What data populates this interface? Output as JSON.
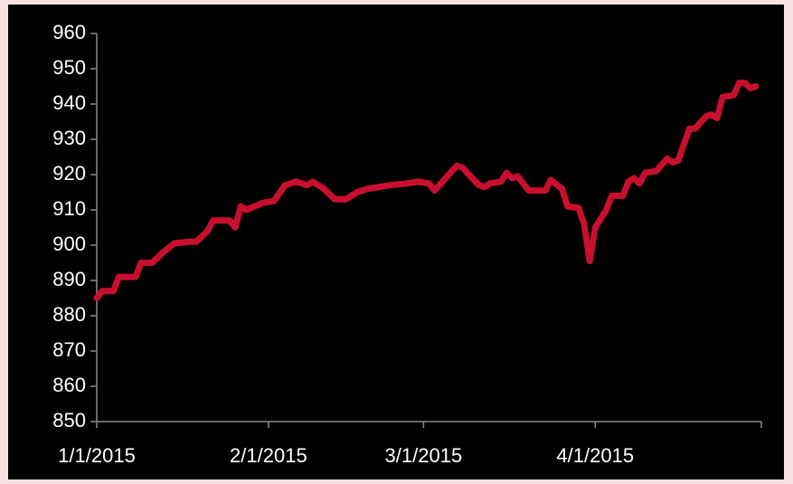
{
  "chart_data": {
    "type": "line",
    "x": [
      "2015-01-01",
      "2015-01-02",
      "2015-01-04",
      "2015-01-05",
      "2015-01-06",
      "2015-01-08",
      "2015-01-09",
      "2015-01-11",
      "2015-01-13",
      "2015-01-15",
      "2015-01-18",
      "2015-01-19",
      "2015-01-21",
      "2015-01-22",
      "2015-01-25",
      "2015-01-26",
      "2015-01-27",
      "2015-01-28",
      "2015-01-31",
      "2015-02-02",
      "2015-02-04",
      "2015-02-06",
      "2015-02-08",
      "2015-02-09",
      "2015-02-11",
      "2015-02-13",
      "2015-02-15",
      "2015-02-17",
      "2015-02-19",
      "2015-02-21",
      "2015-02-23",
      "2015-02-26",
      "2015-02-28",
      "2015-03-02",
      "2015-03-03",
      "2015-03-05",
      "2015-03-07",
      "2015-03-08",
      "2015-03-11",
      "2015-03-12",
      "2015-03-13",
      "2015-03-15",
      "2015-03-16",
      "2015-03-17",
      "2015-03-18",
      "2015-03-20",
      "2015-03-23",
      "2015-03-24",
      "2015-03-26",
      "2015-03-27",
      "2015-03-29",
      "2015-03-30",
      "2015-03-31",
      "2015-04-01",
      "2015-04-03",
      "2015-04-04",
      "2015-04-06",
      "2015-04-07",
      "2015-04-08",
      "2015-04-09",
      "2015-04-10",
      "2015-04-12",
      "2015-04-14",
      "2015-04-15",
      "2015-04-16",
      "2015-04-18",
      "2015-04-19",
      "2015-04-21",
      "2015-04-22",
      "2015-04-23",
      "2015-04-24",
      "2015-04-26",
      "2015-04-27",
      "2015-04-28",
      "2015-04-29",
      "2015-04-30"
    ],
    "series": [
      {
        "color": "#c8102e",
        "values": [
          885,
          887,
          887,
          891,
          891,
          891,
          895,
          895,
          898,
          900.5,
          901,
          901,
          904,
          907,
          907,
          905,
          911,
          910,
          912,
          912.5,
          917,
          918,
          917,
          918,
          916,
          913,
          913,
          915,
          916,
          916.5,
          917,
          917.5,
          918,
          917.5,
          915.5,
          919,
          922.5,
          922,
          917,
          916.5,
          917.5,
          918,
          920.5,
          919,
          919.5,
          915.5,
          915.5,
          918.5,
          916,
          911,
          910.5,
          906,
          895.5,
          905,
          910,
          914,
          914,
          918,
          919,
          917.5,
          920.5,
          921,
          924.5,
          923.5,
          924,
          933,
          933,
          936.5,
          937,
          936,
          942,
          942.5,
          946,
          946,
          944.5,
          945
        ]
      }
    ],
    "xlim": [
      "2015-01-01",
      "2015-05-01"
    ],
    "xticks": [
      {
        "value": "2015-01-01",
        "label": "1/1/2015"
      },
      {
        "value": "2015-02-01",
        "label": "2/1/2015"
      },
      {
        "value": "2015-03-01",
        "label": "3/1/2015"
      },
      {
        "value": "2015-04-01",
        "label": "4/1/2015"
      }
    ],
    "ylim": [
      850,
      960
    ],
    "yticks": [
      850,
      860,
      870,
      880,
      890,
      900,
      910,
      920,
      930,
      940,
      950,
      960
    ]
  }
}
